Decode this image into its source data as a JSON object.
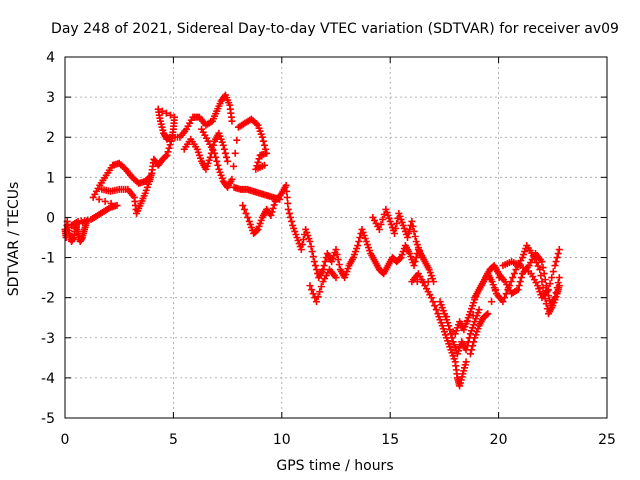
{
  "chart_data": {
    "type": "scatter",
    "title": "Day 248 of 2021, Sidereal Day-to-day VTEC variation (SDTVAR) for receiver av09",
    "xlabel": "GPS time / hours",
    "ylabel": "SDTVAR / TECUs",
    "xlim": [
      0,
      25
    ],
    "ylim": [
      -5,
      4
    ],
    "x_ticks": [
      0,
      5,
      10,
      15,
      20,
      25
    ],
    "y_ticks": [
      -5,
      -4,
      -3,
      -2,
      -1,
      0,
      1,
      2,
      3,
      4
    ],
    "x_tick_labels": [
      "0",
      "5",
      "10",
      "15",
      "20",
      "25"
    ],
    "y_tick_labels": [
      "-5",
      "-4",
      "-3",
      "-2",
      "-1",
      "0",
      "1",
      "2",
      "3",
      "4"
    ],
    "grid": true,
    "marker": "plus",
    "color": "#ff0000",
    "series": [
      {
        "points": [
          [
            0.0,
            -0.3
          ],
          [
            0.05,
            -0.5
          ],
          [
            0.1,
            -0.1
          ],
          [
            0.2,
            -0.4
          ],
          [
            0.3,
            -0.6
          ],
          [
            0.4,
            -0.5
          ],
          [
            0.5,
            -0.2
          ],
          [
            0.6,
            -0.4
          ],
          [
            0.7,
            -0.6
          ],
          [
            0.8,
            -0.5
          ],
          [
            0.9,
            -0.3
          ],
          [
            1.0,
            -0.1
          ],
          [
            0.3,
            -0.2
          ],
          [
            0.6,
            -0.1
          ],
          [
            1.2,
            -0.05
          ],
          [
            1.5,
            0.05
          ],
          [
            1.8,
            0.15
          ],
          [
            2.1,
            0.25
          ],
          [
            2.4,
            0.3
          ],
          [
            1.3,
            0.5
          ],
          [
            1.6,
            0.8
          ],
          [
            1.9,
            1.05
          ],
          [
            2.2,
            1.3
          ],
          [
            2.5,
            1.35
          ],
          [
            2.8,
            1.2
          ],
          [
            3.1,
            1.0
          ],
          [
            3.4,
            0.85
          ],
          [
            3.7,
            0.9
          ],
          [
            3.9,
            1.0
          ],
          [
            1.7,
            0.7
          ],
          [
            2.1,
            0.65
          ],
          [
            2.5,
            0.7
          ],
          [
            2.9,
            0.7
          ],
          [
            3.2,
            0.5
          ],
          [
            3.3,
            0.1
          ],
          [
            3.5,
            0.35
          ],
          [
            3.7,
            0.6
          ],
          [
            3.9,
            0.9
          ],
          [
            4.0,
            1.1
          ],
          [
            4.1,
            1.45
          ],
          [
            4.3,
            1.3
          ],
          [
            4.5,
            1.45
          ],
          [
            4.7,
            1.55
          ],
          [
            4.9,
            1.9
          ],
          [
            5.0,
            2.2
          ],
          [
            5.05,
            2.5
          ],
          [
            4.3,
            2.7
          ],
          [
            4.4,
            2.4
          ],
          [
            4.55,
            2.1
          ],
          [
            4.7,
            1.95
          ],
          [
            4.85,
            2.0
          ],
          [
            5.3,
            2.0
          ],
          [
            5.6,
            2.2
          ],
          [
            5.9,
            2.5
          ],
          [
            6.2,
            2.5
          ],
          [
            6.5,
            2.3
          ],
          [
            6.8,
            2.4
          ],
          [
            7.0,
            2.65
          ],
          [
            7.2,
            2.9
          ],
          [
            7.4,
            3.05
          ],
          [
            7.6,
            2.8
          ],
          [
            7.7,
            2.4
          ],
          [
            5.5,
            1.7
          ],
          [
            5.8,
            1.95
          ],
          [
            6.1,
            1.7
          ],
          [
            6.3,
            1.4
          ],
          [
            6.5,
            1.2
          ],
          [
            6.7,
            1.5
          ],
          [
            6.9,
            1.9
          ],
          [
            7.1,
            2.1
          ],
          [
            7.3,
            1.8
          ],
          [
            7.5,
            1.4
          ],
          [
            6.3,
            2.2
          ],
          [
            6.6,
            1.9
          ],
          [
            6.9,
            1.6
          ],
          [
            7.1,
            1.2
          ],
          [
            7.3,
            0.9
          ],
          [
            7.5,
            0.75
          ],
          [
            7.7,
            0.95
          ],
          [
            8.0,
            2.25
          ],
          [
            8.3,
            2.35
          ],
          [
            8.6,
            2.45
          ],
          [
            8.9,
            2.3
          ],
          [
            9.1,
            2.0
          ],
          [
            9.3,
            1.6
          ],
          [
            9.0,
            1.55
          ],
          [
            8.8,
            1.2
          ],
          [
            9.2,
            1.3
          ],
          [
            7.8,
            0.75
          ],
          [
            8.1,
            0.7
          ],
          [
            8.4,
            0.7
          ],
          [
            8.7,
            0.65
          ],
          [
            9.0,
            0.6
          ],
          [
            9.3,
            0.55
          ],
          [
            9.6,
            0.5
          ],
          [
            9.9,
            0.45
          ],
          [
            8.2,
            0.3
          ],
          [
            8.5,
            -0.1
          ],
          [
            8.7,
            -0.4
          ],
          [
            8.9,
            -0.3
          ],
          [
            9.1,
            0.0
          ],
          [
            9.3,
            0.2
          ],
          [
            9.5,
            0.05
          ],
          [
            9.7,
            0.4
          ],
          [
            10.0,
            0.6
          ],
          [
            10.2,
            0.8
          ],
          [
            10.3,
            0.2
          ],
          [
            10.5,
            -0.2
          ],
          [
            10.7,
            -0.5
          ],
          [
            10.9,
            -0.8
          ],
          [
            11.1,
            -0.3
          ],
          [
            11.3,
            -0.6
          ],
          [
            11.5,
            -1.1
          ],
          [
            11.7,
            -1.5
          ],
          [
            11.9,
            -1.3
          ],
          [
            12.1,
            -0.9
          ],
          [
            12.3,
            -1.1
          ],
          [
            12.5,
            -0.8
          ],
          [
            12.7,
            -1.3
          ],
          [
            12.9,
            -1.5
          ],
          [
            13.1,
            -1.2
          ],
          [
            13.3,
            -1.0
          ],
          [
            13.5,
            -0.7
          ],
          [
            13.7,
            -0.3
          ],
          [
            13.9,
            -0.6
          ],
          [
            14.1,
            -0.9
          ],
          [
            14.3,
            -1.1
          ],
          [
            14.5,
            -1.3
          ],
          [
            14.7,
            -1.4
          ],
          [
            14.9,
            -1.2
          ],
          [
            15.1,
            -1.0
          ],
          [
            15.3,
            -1.1
          ],
          [
            15.5,
            -1.0
          ],
          [
            15.7,
            -0.7
          ],
          [
            15.9,
            -0.9
          ],
          [
            16.1,
            -1.2
          ],
          [
            16.3,
            -0.8
          ],
          [
            16.5,
            -1.0
          ],
          [
            11.3,
            -1.7
          ],
          [
            11.6,
            -2.1
          ],
          [
            11.9,
            -1.6
          ],
          [
            12.2,
            -1.3
          ],
          [
            12.5,
            -1.5
          ],
          [
            14.2,
            0.0
          ],
          [
            14.5,
            -0.3
          ],
          [
            14.8,
            0.2
          ],
          [
            15.0,
            -0.1
          ],
          [
            15.2,
            -0.4
          ],
          [
            15.4,
            0.1
          ],
          [
            15.6,
            -0.2
          ],
          [
            15.8,
            -0.5
          ],
          [
            16.0,
            -0.1
          ],
          [
            16.2,
            -0.6
          ],
          [
            16.4,
            -0.9
          ],
          [
            16.6,
            -1.1
          ],
          [
            16.8,
            -1.3
          ],
          [
            17.0,
            -1.6
          ],
          [
            16.0,
            -1.6
          ],
          [
            16.3,
            -1.4
          ],
          [
            16.6,
            -1.7
          ],
          [
            16.9,
            -2.0
          ],
          [
            17.2,
            -2.4
          ],
          [
            17.4,
            -2.7
          ],
          [
            17.6,
            -3.0
          ],
          [
            17.8,
            -3.3
          ],
          [
            18.0,
            -3.6
          ],
          [
            18.1,
            -4.0
          ],
          [
            18.2,
            -4.2
          ],
          [
            18.35,
            -3.9
          ],
          [
            18.5,
            -3.6
          ],
          [
            17.3,
            -2.1
          ],
          [
            17.5,
            -2.4
          ],
          [
            17.7,
            -2.7
          ],
          [
            17.9,
            -3.1
          ],
          [
            18.1,
            -3.4
          ],
          [
            18.3,
            -3.1
          ],
          [
            18.5,
            -3.3
          ],
          [
            18.7,
            -2.9
          ],
          [
            18.9,
            -2.6
          ],
          [
            19.1,
            -2.3
          ],
          [
            18.0,
            -2.9
          ],
          [
            18.2,
            -2.6
          ],
          [
            18.4,
            -2.8
          ],
          [
            18.6,
            -2.5
          ],
          [
            18.8,
            -2.2
          ],
          [
            19.0,
            -1.9
          ],
          [
            19.2,
            -1.7
          ],
          [
            19.4,
            -1.5
          ],
          [
            19.6,
            -1.3
          ],
          [
            19.8,
            -1.2
          ],
          [
            20.0,
            -1.4
          ],
          [
            20.3,
            -1.6
          ],
          [
            20.6,
            -1.9
          ],
          [
            20.9,
            -1.8
          ],
          [
            21.1,
            -1.4
          ],
          [
            21.4,
            -1.2
          ],
          [
            21.7,
            -0.9
          ],
          [
            22.0,
            -1.1
          ],
          [
            22.2,
            -1.7
          ],
          [
            22.4,
            -2.2
          ],
          [
            22.6,
            -2.0
          ],
          [
            22.8,
            -1.5
          ],
          [
            18.9,
            -2.0
          ],
          [
            19.1,
            -1.8
          ],
          [
            19.3,
            -1.6
          ],
          [
            19.5,
            -1.4
          ],
          [
            19.7,
            -1.6
          ],
          [
            19.9,
            -1.9
          ],
          [
            20.2,
            -2.1
          ],
          [
            20.5,
            -1.7
          ],
          [
            20.8,
            -1.3
          ],
          [
            21.1,
            -1.0
          ],
          [
            21.3,
            -0.7
          ],
          [
            21.6,
            -0.95
          ],
          [
            21.9,
            -1.3
          ],
          [
            22.1,
            -1.9
          ],
          [
            22.3,
            -2.4
          ],
          [
            22.5,
            -2.2
          ],
          [
            22.7,
            -1.9
          ],
          [
            22.8,
            -1.7
          ],
          [
            18.7,
            -3.4
          ],
          [
            18.9,
            -3.0
          ],
          [
            19.1,
            -2.7
          ],
          [
            19.3,
            -2.5
          ],
          [
            19.5,
            -2.4
          ],
          [
            20.2,
            -1.2
          ],
          [
            20.6,
            -1.1
          ],
          [
            21.0,
            -1.2
          ],
          [
            21.5,
            -1.4
          ],
          [
            21.8,
            -1.7
          ],
          [
            22.0,
            -2.0
          ],
          [
            22.3,
            -1.8
          ],
          [
            22.6,
            -1.2
          ],
          [
            22.8,
            -0.8
          ]
        ]
      }
    ]
  }
}
